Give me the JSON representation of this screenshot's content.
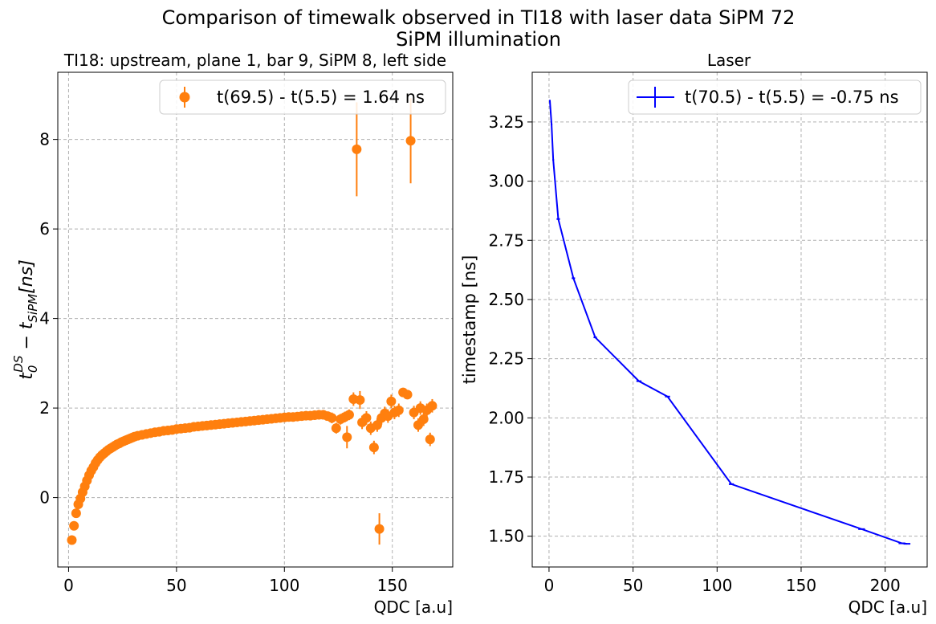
{
  "figure": {
    "suptitle_line1": "Comparison of timewalk observed in TI18 with laser data SiPM 72",
    "suptitle_line2": "SiPM illumination"
  },
  "chart_data": [
    {
      "type": "scatter",
      "title": "TI18: upstream, plane 1, bar 9, SiPM 8, left side",
      "xlabel": "QDC [a.u]",
      "ylabel": "t_0^DS − t_SiPM[ns]",
      "ylabel_parts": {
        "base": "t",
        "sub1": "0",
        "sup1": "DS",
        "minus": " − t",
        "sub2": "SiPM",
        "tail": "[ns]"
      },
      "xlim": [
        -5,
        178
      ],
      "ylim": [
        -1.55,
        9.5
      ],
      "xticks": [
        0,
        50,
        100,
        150
      ],
      "yticks": [
        0,
        2,
        4,
        6,
        8
      ],
      "grid": true,
      "color": "#ff7f0e",
      "legend": {
        "position": "top-right",
        "label": "t(69.5) - t(5.5) = 1.64 ns"
      },
      "series": [
        {
          "x": [
            1.5,
            2.5,
            3.5,
            4.5,
            5.5,
            6.5,
            7.5,
            8.5,
            9.5,
            10.5,
            11.5,
            12.5,
            13.5,
            14.5,
            15.5,
            16.5,
            17.5,
            18.5,
            19.5,
            20.5,
            21.5,
            22.5,
            23.5,
            24.5,
            25.5,
            26.5,
            27.5,
            28.5,
            29.5,
            30.5,
            32,
            34,
            36,
            38,
            40,
            42,
            44,
            46,
            48,
            50,
            52,
            54,
            56,
            58,
            60,
            62,
            64,
            66,
            68,
            70,
            72,
            74,
            76,
            78,
            80,
            82,
            84,
            86,
            88,
            90,
            92,
            94,
            96,
            98,
            100,
            102,
            104,
            106,
            108,
            110,
            112,
            114,
            116,
            118,
            120,
            122,
            124,
            126,
            128,
            129,
            130,
            132,
            133.5,
            135,
            136,
            138,
            140,
            141.5,
            143,
            144,
            145,
            146.5,
            148,
            149.5,
            151,
            153,
            155,
            157,
            158.5,
            160,
            162,
            163,
            164.5,
            166,
            167.5,
            168.5
          ],
          "y": [
            -0.95,
            -0.63,
            -0.35,
            -0.15,
            -0.02,
            0.12,
            0.25,
            0.38,
            0.5,
            0.6,
            0.68,
            0.77,
            0.84,
            0.9,
            0.95,
            0.99,
            1.03,
            1.07,
            1.1,
            1.13,
            1.16,
            1.19,
            1.21,
            1.24,
            1.26,
            1.28,
            1.3,
            1.32,
            1.34,
            1.36,
            1.38,
            1.4,
            1.42,
            1.44,
            1.46,
            1.47,
            1.49,
            1.5,
            1.51,
            1.53,
            1.54,
            1.55,
            1.56,
            1.58,
            1.59,
            1.6,
            1.61,
            1.62,
            1.63,
            1.64,
            1.65,
            1.66,
            1.67,
            1.68,
            1.69,
            1.7,
            1.71,
            1.72,
            1.73,
            1.74,
            1.75,
            1.76,
            1.77,
            1.78,
            1.79,
            1.8,
            1.8,
            1.81,
            1.82,
            1.83,
            1.83,
            1.84,
            1.85,
            1.85,
            1.82,
            1.78,
            1.55,
            1.75,
            1.8,
            1.35,
            1.85,
            2.2,
            7.78,
            2.18,
            1.68,
            1.78,
            1.55,
            1.12,
            1.62,
            -0.7,
            1.78,
            1.88,
            1.82,
            2.15,
            1.9,
            1.95,
            2.35,
            2.3,
            7.97,
            1.9,
            1.62,
            2.0,
            1.75,
            1.95,
            1.3,
            2.05
          ],
          "yerr": [
            0.04,
            0.04,
            0.04,
            0.04,
            0.03,
            0.03,
            0.03,
            0.03,
            0.03,
            0.03,
            0.03,
            0.03,
            0.03,
            0.03,
            0.03,
            0.03,
            0.03,
            0.03,
            0.03,
            0.03,
            0.03,
            0.03,
            0.03,
            0.03,
            0.03,
            0.03,
            0.03,
            0.03,
            0.03,
            0.03,
            0.03,
            0.03,
            0.03,
            0.03,
            0.03,
            0.03,
            0.03,
            0.03,
            0.03,
            0.03,
            0.03,
            0.03,
            0.03,
            0.03,
            0.03,
            0.03,
            0.03,
            0.03,
            0.03,
            0.03,
            0.03,
            0.03,
            0.03,
            0.04,
            0.04,
            0.04,
            0.04,
            0.04,
            0.05,
            0.05,
            0.05,
            0.05,
            0.05,
            0.06,
            0.06,
            0.06,
            0.07,
            0.07,
            0.08,
            0.08,
            0.09,
            0.1,
            0.1,
            0.1,
            0.1,
            0.12,
            0.12,
            0.12,
            0.12,
            0.25,
            0.12,
            0.15,
            1.05,
            0.2,
            0.15,
            0.15,
            0.15,
            0.15,
            0.15,
            0.35,
            0.15,
            0.15,
            0.15,
            0.15,
            0.15,
            0.15,
            0.1,
            0.1,
            0.95,
            0.15,
            0.15,
            0.15,
            0.15,
            0.15,
            0.15,
            0.15
          ]
        }
      ]
    },
    {
      "type": "line",
      "title": "Laser",
      "xlabel": "QDC [a.u]",
      "ylabel": "timestamp [ns]",
      "xlim": [
        -10,
        225
      ],
      "ylim": [
        1.37,
        3.46
      ],
      "xticks": [
        0,
        50,
        100,
        150,
        200
      ],
      "yticks": [
        1.5,
        1.75,
        2.0,
        2.25,
        2.5,
        2.75,
        3.0,
        3.25
      ],
      "ytick_labels": [
        "1.50",
        "1.75",
        "2.00",
        "2.25",
        "2.50",
        "2.75",
        "3.00",
        "3.25"
      ],
      "grid": true,
      "color": "#0000ff",
      "legend": {
        "position": "top-right",
        "label": "t(70.5) - t(5.5) = -0.75 ns"
      },
      "series": [
        {
          "x": [
            0.5,
            1.5,
            2.5,
            5.5,
            14.5,
            27.5,
            53.5,
            70.5,
            108.5,
            186,
            210,
            213
          ],
          "y": [
            3.34,
            3.24,
            3.09,
            2.84,
            2.59,
            2.34,
            2.155,
            2.09,
            1.72,
            1.53,
            1.47,
            1.468
          ],
          "xerr": [
            0.5,
            0.5,
            0.5,
            1,
            1,
            1,
            1.5,
            1.5,
            1.5,
            2,
            2,
            2
          ]
        }
      ]
    }
  ]
}
